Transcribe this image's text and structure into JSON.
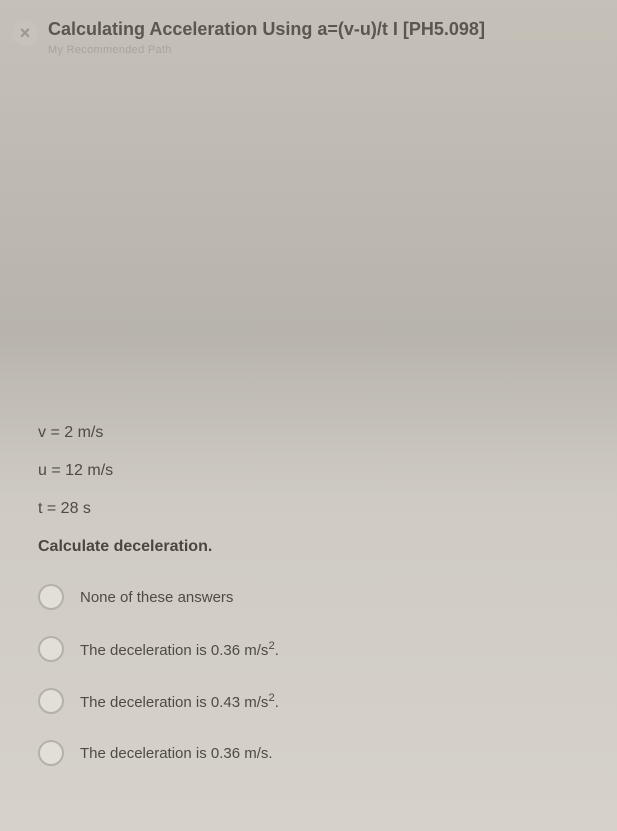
{
  "header": {
    "title": "Calculating Acceleration Using a=(v-u)/t I [PH5.098]",
    "subtitle": "My Recommended Path",
    "close_glyph": "×"
  },
  "question": {
    "given": [
      "v = 2 m/s",
      "u = 12 m/s",
      "t = 28 s"
    ],
    "prompt": "Calculate deceleration.",
    "options": [
      {
        "html": "None of these answers"
      },
      {
        "html": "The deceleration is 0.36 m/s<sup>2</sup>."
      },
      {
        "html": "The deceleration is 0.43 m/s<sup>2</sup>."
      },
      {
        "html": "The deceleration is 0.36 m/s."
      }
    ]
  },
  "styles": {
    "radio_border": "#b5b1a9",
    "text_color": "#4f4b44",
    "title_color": "#5b5750",
    "bg_top": "#c5c1b8",
    "bg_bottom": "#d6d2cb"
  }
}
